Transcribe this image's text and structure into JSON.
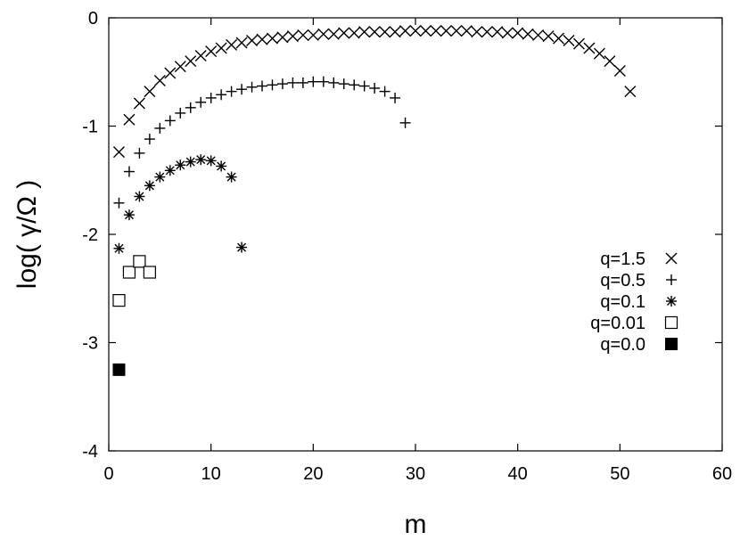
{
  "chart_data": {
    "type": "scatter",
    "xlabel": "m",
    "ylabel": "log( γ/Ω )",
    "xlim": [
      0,
      60
    ],
    "ylim": [
      -4,
      0
    ],
    "xticks": [
      0,
      10,
      20,
      30,
      40,
      50,
      60
    ],
    "yticks": [
      0,
      -1,
      -2,
      -3,
      -4
    ],
    "grid": false,
    "legend_position": "right",
    "series": [
      {
        "name": "q=1.5",
        "marker": "x",
        "x": [
          1,
          2,
          3,
          4,
          5,
          6,
          7,
          8,
          9,
          10,
          11,
          12,
          13,
          14,
          15,
          16,
          17,
          18,
          19,
          20,
          21,
          22,
          23,
          24,
          25,
          26,
          27,
          28,
          29,
          30,
          31,
          32,
          33,
          34,
          35,
          36,
          37,
          38,
          39,
          40,
          41,
          42,
          43,
          44,
          45,
          46,
          47,
          48,
          49,
          50,
          51
        ],
        "y": [
          -1.24,
          -0.94,
          -0.79,
          -0.68,
          -0.58,
          -0.51,
          -0.45,
          -0.4,
          -0.35,
          -0.31,
          -0.28,
          -0.25,
          -0.23,
          -0.21,
          -0.2,
          -0.19,
          -0.18,
          -0.17,
          -0.16,
          -0.16,
          -0.15,
          -0.15,
          -0.14,
          -0.14,
          -0.13,
          -0.13,
          -0.13,
          -0.13,
          -0.12,
          -0.12,
          -0.12,
          -0.12,
          -0.12,
          -0.12,
          -0.12,
          -0.13,
          -0.13,
          -0.13,
          -0.14,
          -0.14,
          -0.15,
          -0.16,
          -0.17,
          -0.19,
          -0.21,
          -0.24,
          -0.28,
          -0.33,
          -0.4,
          -0.49,
          -0.68
        ]
      },
      {
        "name": "q=0.5",
        "marker": "+",
        "x": [
          1,
          2,
          3,
          4,
          5,
          6,
          7,
          8,
          9,
          10,
          11,
          12,
          13,
          14,
          15,
          16,
          17,
          18,
          19,
          20,
          21,
          22,
          23,
          24,
          25,
          26,
          27,
          28,
          29
        ],
        "y": [
          -1.71,
          -1.42,
          -1.25,
          -1.12,
          -1.02,
          -0.95,
          -0.88,
          -0.83,
          -0.78,
          -0.74,
          -0.71,
          -0.68,
          -0.66,
          -0.64,
          -0.63,
          -0.62,
          -0.61,
          -0.6,
          -0.6,
          -0.59,
          -0.59,
          -0.6,
          -0.61,
          -0.62,
          -0.63,
          -0.65,
          -0.68,
          -0.74,
          -0.97
        ]
      },
      {
        "name": "q=0.1",
        "marker": "*",
        "x": [
          1,
          2,
          3,
          4,
          5,
          6,
          7,
          8,
          9,
          10,
          11,
          12,
          13
        ],
        "y": [
          -2.13,
          -1.82,
          -1.65,
          -1.55,
          -1.47,
          -1.41,
          -1.36,
          -1.33,
          -1.31,
          -1.32,
          -1.37,
          -1.47,
          -2.12
        ]
      },
      {
        "name": "q=0.01",
        "marker": "open-square",
        "x": [
          1,
          2,
          3,
          4
        ],
        "y": [
          -2.61,
          -2.35,
          -2.25,
          -2.35
        ]
      },
      {
        "name": "q=0.0",
        "marker": "filled-square",
        "x": [
          1
        ],
        "y": [
          -3.25
        ]
      }
    ]
  }
}
